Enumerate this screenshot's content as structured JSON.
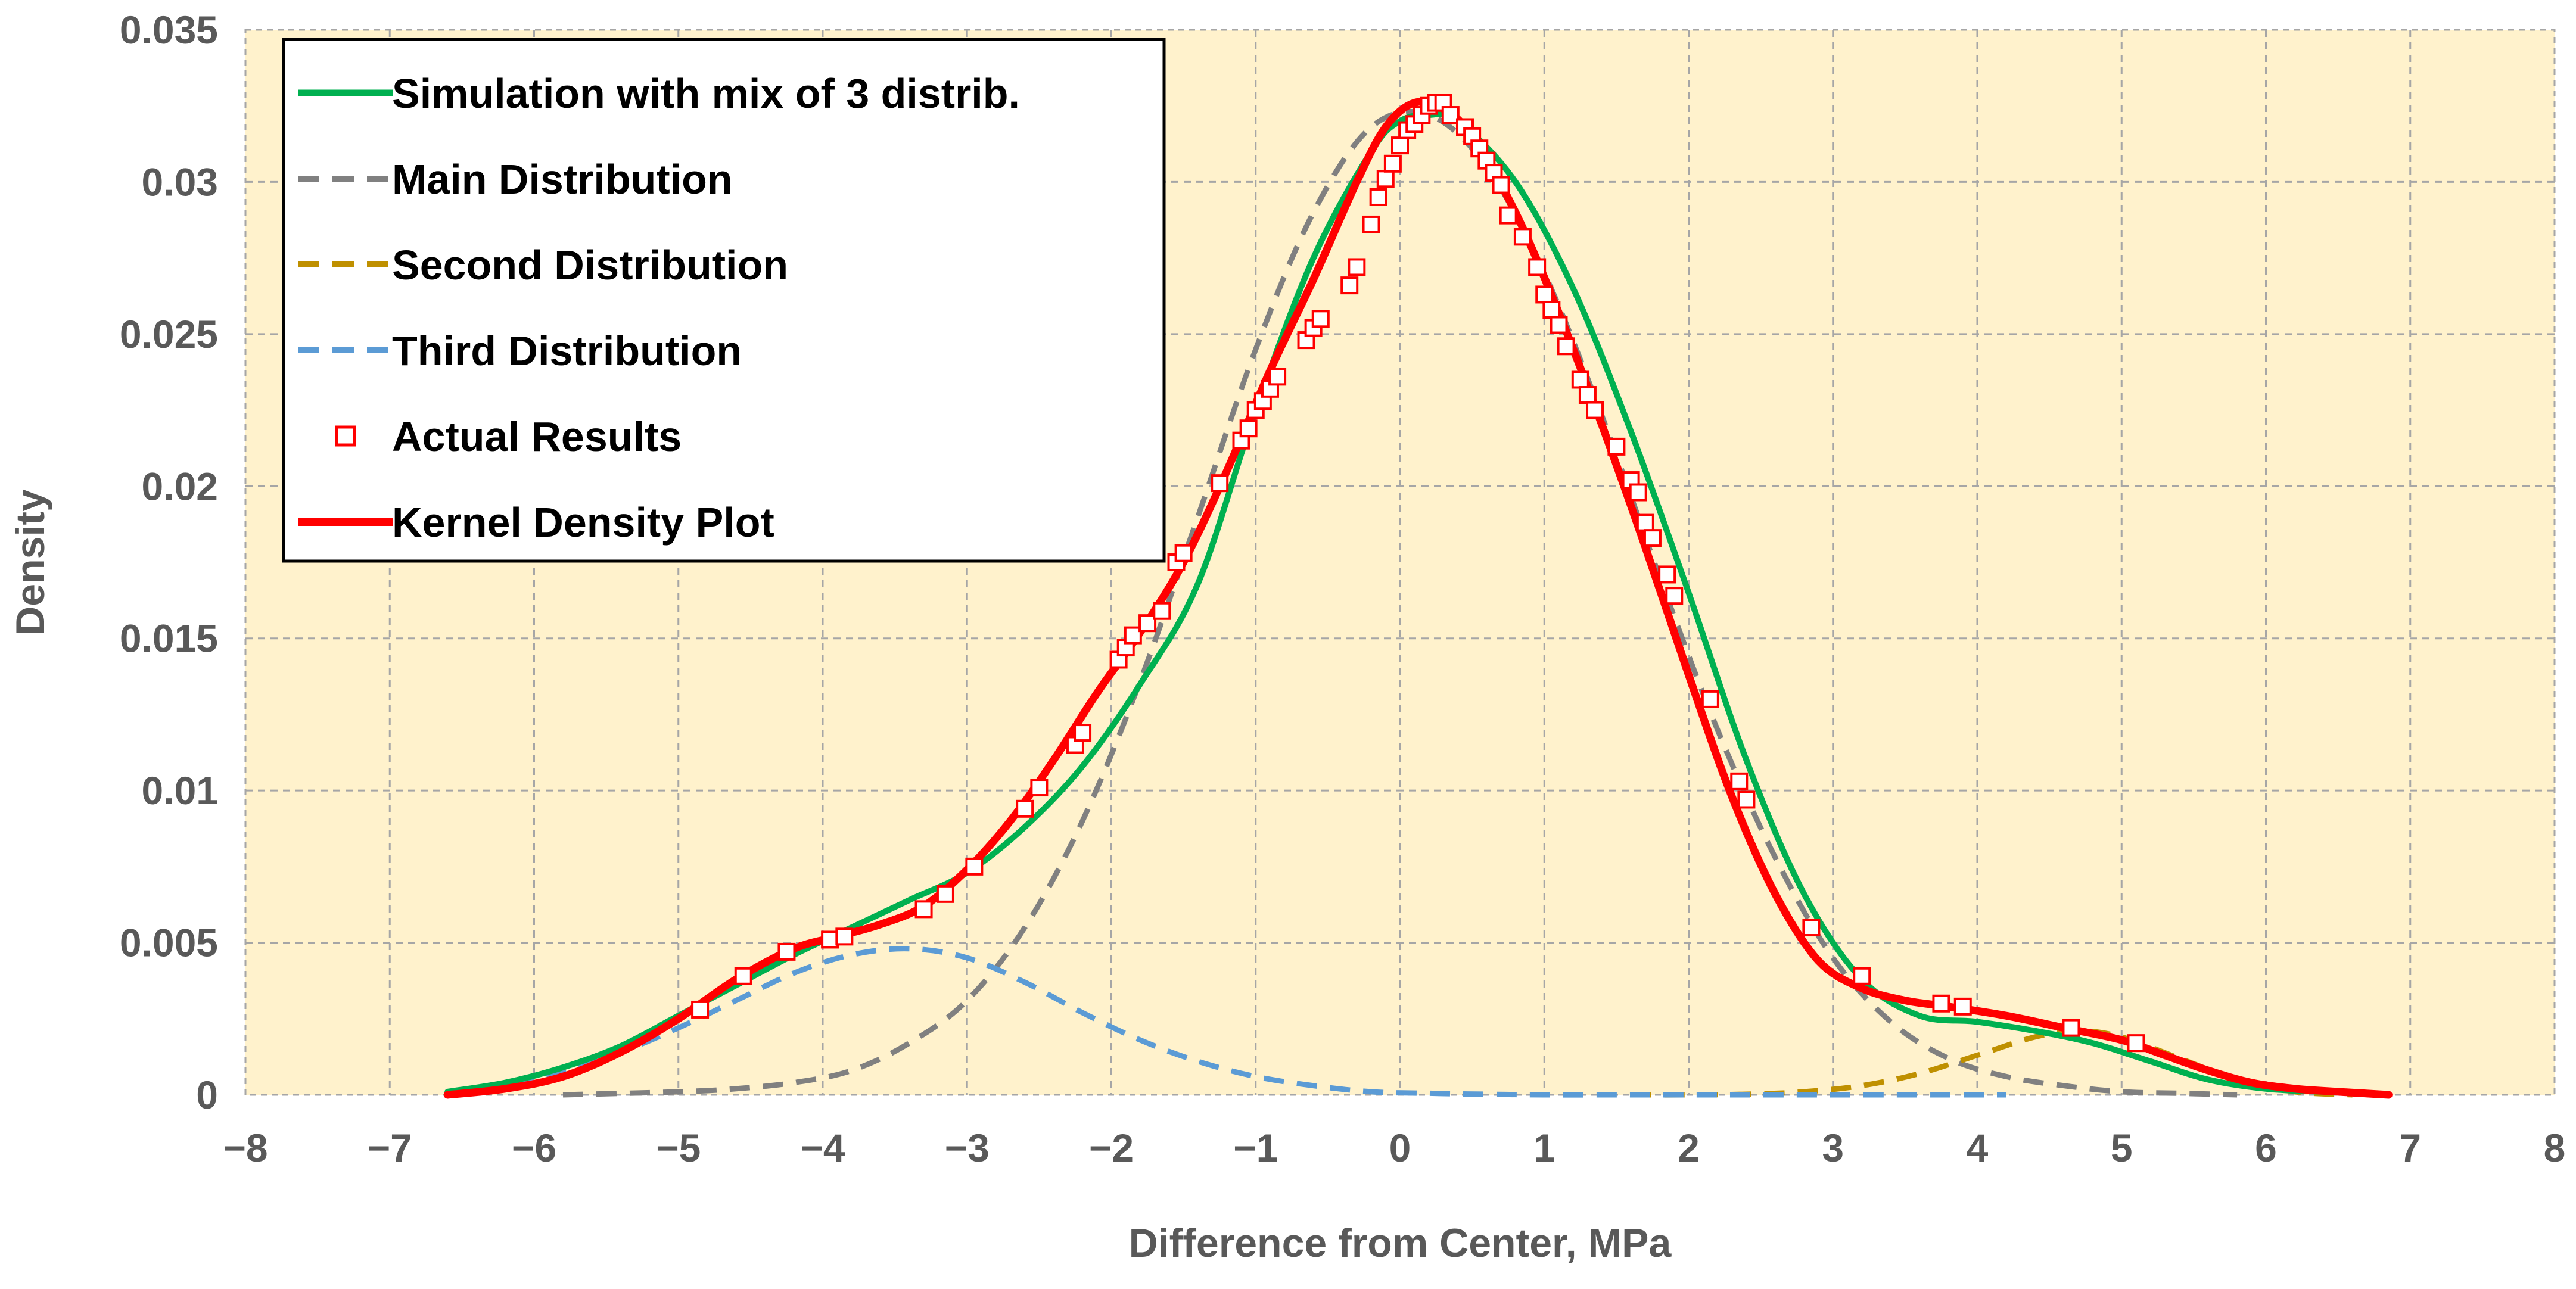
{
  "chart_data": {
    "type": "line",
    "title": "",
    "xlabel": "Difference from Center, MPa",
    "ylabel": "Density",
    "xlim": [
      -8,
      8
    ],
    "ylim": [
      0,
      0.035
    ],
    "x_ticks": [
      -8,
      -7,
      -6,
      -5,
      -4,
      -3,
      -2,
      -1,
      0,
      1,
      2,
      3,
      4,
      5,
      6,
      7,
      8
    ],
    "x_tick_labels": [
      "−8",
      "−7",
      "−6",
      "−5",
      "−4",
      "−3",
      "−2",
      "−1",
      "0",
      "1",
      "2",
      "3",
      "4",
      "5",
      "6",
      "7",
      "8"
    ],
    "y_ticks": [
      0,
      0.005,
      0.01,
      0.015,
      0.02,
      0.025,
      0.03,
      0.035
    ],
    "y_tick_labels": [
      "0",
      "0.005",
      "0.01",
      "0.015",
      "0.02",
      "0.025",
      "0.03",
      "0.035"
    ],
    "grid": true,
    "legend_position": "top-left",
    "colors": {
      "plot_background": "#FFF2CC",
      "grid": "#A6A6A6",
      "simulation": "#00B050",
      "main": "#808080",
      "second": "#BF9000",
      "third": "#5B9BD5",
      "actual": "#FF0000",
      "kernel": "#FF0000"
    },
    "series": [
      {
        "name": "Simulation with mix of 3 distrib.",
        "style": "solid",
        "x": [
          -6.6,
          -6.2,
          -5.8,
          -5.4,
          -5.0,
          -4.6,
          -4.2,
          -3.8,
          -3.4,
          -3.0,
          -2.6,
          -2.2,
          -1.8,
          -1.4,
          -1.0,
          -0.6,
          -0.2,
          0.0,
          0.2,
          0.4,
          0.8,
          1.2,
          1.6,
          2.0,
          2.4,
          2.8,
          3.2,
          3.6,
          4.0,
          4.4,
          4.8,
          5.2,
          5.6,
          6.0,
          6.4,
          6.8
        ],
        "y": [
          0.0001,
          0.0004,
          0.0009,
          0.0016,
          0.0026,
          0.0036,
          0.0046,
          0.0055,
          0.0064,
          0.0073,
          0.0088,
          0.0108,
          0.0135,
          0.0168,
          0.0225,
          0.0275,
          0.031,
          0.032,
          0.0322,
          0.032,
          0.03,
          0.0265,
          0.0218,
          0.0165,
          0.011,
          0.0066,
          0.0038,
          0.0026,
          0.0024,
          0.0021,
          0.0017,
          0.0011,
          0.0005,
          0.0002,
          0.0001,
          0.0
        ]
      },
      {
        "name": "Main Distribution",
        "style": "dashed",
        "x": [
          -5.8,
          -5.0,
          -4.6,
          -4.2,
          -3.8,
          -3.4,
          -3.0,
          -2.6,
          -2.2,
          -1.8,
          -1.4,
          -1.0,
          -0.6,
          -0.2,
          0.2,
          0.6,
          1.0,
          1.4,
          1.8,
          2.2,
          2.6,
          3.0,
          3.4,
          3.8,
          4.2,
          4.6,
          5.0,
          5.4,
          5.8
        ],
        "y": [
          0.0,
          0.0001,
          0.0002,
          0.0004,
          0.0008,
          0.0017,
          0.0031,
          0.0055,
          0.009,
          0.0136,
          0.019,
          0.0245,
          0.029,
          0.0318,
          0.0322,
          0.0305,
          0.027,
          0.0223,
          0.017,
          0.012,
          0.0078,
          0.0045,
          0.0024,
          0.0012,
          0.0006,
          0.0003,
          0.0001,
          5e-05,
          0.0
        ]
      },
      {
        "name": "Second Distribution",
        "style": "dashed",
        "x": [
          1.6,
          2.0,
          2.4,
          2.8,
          3.2,
          3.6,
          4.0,
          4.4,
          4.7,
          5.0,
          5.4,
          5.8,
          6.2,
          6.6
        ],
        "y": [
          0.0,
          0.0,
          2e-05,
          0.0001,
          0.0003,
          0.0007,
          0.0013,
          0.0019,
          0.0021,
          0.0019,
          0.0012,
          0.0005,
          0.0001,
          0.0
        ]
      },
      {
        "name": "Third Distribution",
        "style": "dashed",
        "x": [
          -6.6,
          -6.2,
          -5.8,
          -5.4,
          -5.0,
          -4.6,
          -4.2,
          -3.8,
          -3.4,
          -3.0,
          -2.6,
          -2.2,
          -1.8,
          -1.4,
          -1.0,
          -0.6,
          -0.2,
          0.2,
          0.6,
          1.0,
          1.6,
          2.4,
          3.2,
          4.2
        ],
        "y": [
          0.0001,
          0.0004,
          0.0008,
          0.0014,
          0.0022,
          0.0031,
          0.004,
          0.0046,
          0.0048,
          0.0045,
          0.0037,
          0.0027,
          0.0018,
          0.0011,
          0.0006,
          0.0003,
          0.0001,
          5e-05,
          2e-05,
          0.0,
          0.0,
          0.0,
          0.0,
          0.0
        ]
      },
      {
        "name": "Actual Results",
        "style": "markers",
        "x": [
          -4.85,
          -4.55,
          -4.25,
          -3.95,
          -3.85,
          -3.3,
          -3.15,
          -2.95,
          -2.6,
          -2.5,
          -2.25,
          -2.2,
          -1.95,
          -1.9,
          -1.85,
          -1.75,
          -1.65,
          -1.55,
          -1.5,
          -1.25,
          -1.1,
          -1.05,
          -1.0,
          -0.95,
          -0.9,
          -0.85,
          -0.65,
          -0.6,
          -0.55,
          -0.35,
          -0.3,
          -0.2,
          -0.15,
          -0.1,
          -0.05,
          0.0,
          0.05,
          0.1,
          0.15,
          0.2,
          0.25,
          0.3,
          0.35,
          0.45,
          0.5,
          0.55,
          0.6,
          0.65,
          0.7,
          0.75,
          0.85,
          0.95,
          1.0,
          1.05,
          1.1,
          1.15,
          1.25,
          1.3,
          1.35,
          1.5,
          1.6,
          1.65,
          1.7,
          1.75,
          1.85,
          1.9,
          2.15,
          2.35,
          2.4,
          2.85,
          3.2,
          3.75,
          3.9,
          4.65,
          5.1
        ],
        "y": [
          0.0028,
          0.0039,
          0.0047,
          0.0051,
          0.0052,
          0.0061,
          0.0066,
          0.0075,
          0.0094,
          0.0101,
          0.0115,
          0.0119,
          0.0143,
          0.0147,
          0.0151,
          0.0155,
          0.0159,
          0.0175,
          0.0178,
          0.0201,
          0.0215,
          0.0219,
          0.0225,
          0.0228,
          0.0232,
          0.0236,
          0.0248,
          0.0252,
          0.0255,
          0.0266,
          0.0272,
          0.0286,
          0.0295,
          0.0301,
          0.0306,
          0.0312,
          0.0317,
          0.0319,
          0.0322,
          0.0325,
          0.0326,
          0.0326,
          0.0322,
          0.0318,
          0.0315,
          0.0311,
          0.0307,
          0.0303,
          0.0299,
          0.0289,
          0.0282,
          0.0272,
          0.0263,
          0.0258,
          0.0253,
          0.0246,
          0.0235,
          0.023,
          0.0225,
          0.0213,
          0.0202,
          0.0198,
          0.0188,
          0.0183,
          0.0171,
          0.0164,
          0.013,
          0.0103,
          0.0097,
          0.0055,
          0.0039,
          0.003,
          0.0029,
          0.0022,
          0.0017
        ]
      },
      {
        "name": "Kernel Density Plot",
        "style": "solid",
        "x": [
          -6.6,
          -6.2,
          -5.8,
          -5.4,
          -5.0,
          -4.6,
          -4.2,
          -3.9,
          -3.6,
          -3.3,
          -3.0,
          -2.7,
          -2.4,
          -2.1,
          -1.8,
          -1.5,
          -1.2,
          -0.9,
          -0.6,
          -0.3,
          -0.1,
          0.1,
          0.3,
          0.5,
          0.8,
          1.1,
          1.4,
          1.7,
          2.0,
          2.3,
          2.6,
          2.9,
          3.2,
          3.5,
          3.8,
          4.2,
          4.6,
          5.0,
          5.3,
          5.6,
          5.9,
          6.2,
          6.5,
          6.85
        ],
        "y": [
          0.0,
          0.0002,
          0.0006,
          0.0014,
          0.0025,
          0.0038,
          0.0048,
          0.0052,
          0.0056,
          0.0062,
          0.0074,
          0.009,
          0.011,
          0.0132,
          0.0152,
          0.0175,
          0.0205,
          0.0238,
          0.0268,
          0.03,
          0.0318,
          0.0326,
          0.0324,
          0.0315,
          0.029,
          0.0257,
          0.022,
          0.018,
          0.0138,
          0.0098,
          0.0066,
          0.0044,
          0.0035,
          0.0031,
          0.0029,
          0.0026,
          0.0022,
          0.0018,
          0.0013,
          0.0008,
          0.0004,
          0.0002,
          0.0001,
          0.0
        ]
      }
    ]
  }
}
